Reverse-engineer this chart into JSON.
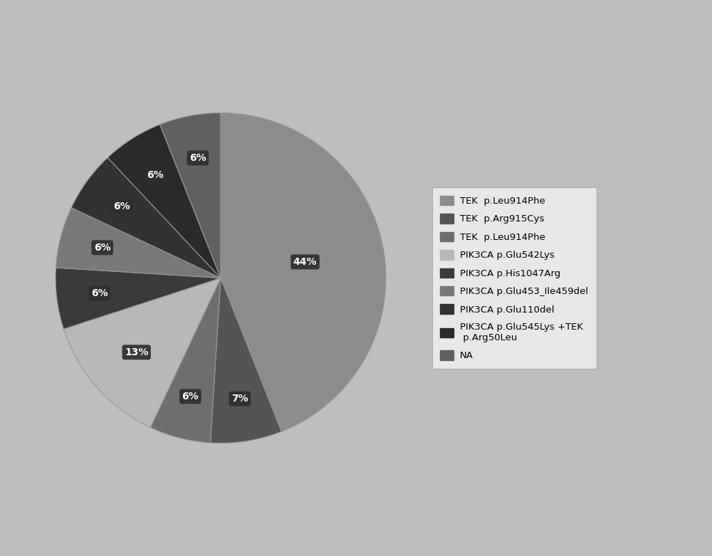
{
  "labels": [
    "TEK  p.Leu914Phe",
    "TEK  p.Arg915Cys",
    "TEK  p.Leu914Phe",
    "PIK3CA p.Glu542Lys",
    "PIK3CA p.His1047Arg",
    "PIK3CA p.Glu453_Ile459del",
    "PIK3CA p.Glu110del",
    "PIK3CA p.Glu545Lys +TEK\n p.Arg50Leu",
    "NA"
  ],
  "values": [
    44,
    7,
    6,
    13,
    6,
    6,
    6,
    6,
    6
  ],
  "colors": [
    "#8c8c8c",
    "#545454",
    "#6e6e6e",
    "#b8b8b8",
    "#3a3a3a",
    "#787878",
    "#323232",
    "#2a2a2a",
    "#606060"
  ],
  "pct_labels": [
    "44%",
    "7%",
    "6%",
    "13%",
    "6%",
    "6%",
    "6%",
    "6%",
    "6%"
  ],
  "background_color": "#bebebe",
  "label_bg_color": "#2e2e2e",
  "label_text_color": "#ffffff",
  "startangle": 90,
  "legend_facecolor": "#e8e8e8",
  "legend_edgecolor": "#aaaaaa"
}
